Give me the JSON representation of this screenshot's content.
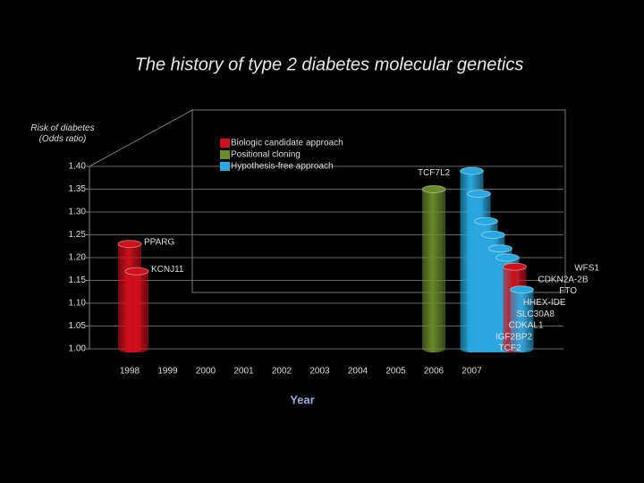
{
  "chart_data": {
    "type": "bar",
    "title": "The history of type 2 diabetes molecular genetics",
    "y_label": "Risk of diabetes (Odds ratio)",
    "x_label": "Year",
    "ylim": [
      1.0,
      1.4
    ],
    "yticks": [
      {
        "value": 1.0,
        "label": "1.00"
      },
      {
        "value": 1.05,
        "label": "1.05"
      },
      {
        "value": 1.1,
        "label": "1.10"
      },
      {
        "value": 1.15,
        "label": "1.15"
      },
      {
        "value": 1.2,
        "label": "1.20"
      },
      {
        "value": 1.25,
        "label": "1.25"
      },
      {
        "value": 1.3,
        "label": "1.30"
      },
      {
        "value": 1.35,
        "label": "1.35"
      },
      {
        "value": 1.4,
        "label": "1.40"
      }
    ],
    "xlim": [
      1997.2,
      2008
    ],
    "xticks": [
      1998,
      1999,
      2000,
      2001,
      2002,
      2003,
      2004,
      2005,
      2006,
      2007
    ],
    "grid": true,
    "series": [
      {
        "name": "Biologic candidate approach",
        "color": "#d0101a",
        "labels": [
          "PPARG",
          "KCNJ11",
          "WFS1"
        ],
        "x": [
          1998,
          1998,
          2007
        ],
        "values": [
          1.23,
          1.17,
          1.18
        ]
      },
      {
        "name": "Positional cloning",
        "color": "#6b8a2a",
        "labels": [
          "TCF7L2"
        ],
        "x": [
          2006
        ],
        "values": [
          1.35
        ]
      },
      {
        "name": "Hypothesis-free approach",
        "color": "#2aa9e0",
        "labels": [
          "CDKN2A-2B",
          "FTO",
          "HHEX-IDE",
          "SLC30A8",
          "CDKAL1",
          "IGF2BP2",
          "TCF2"
        ],
        "x": [
          2007,
          2007,
          2007,
          2007,
          2007,
          2007,
          2007
        ],
        "values": [
          1.39,
          1.34,
          1.28,
          1.25,
          1.22,
          1.2,
          1.13
        ]
      }
    ]
  }
}
